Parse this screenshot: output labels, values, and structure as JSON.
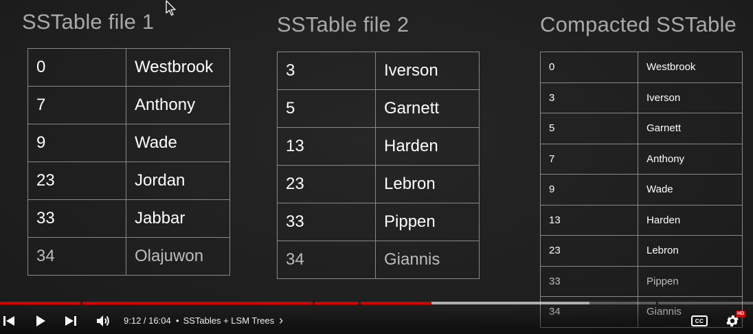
{
  "tables": [
    {
      "title": "SSTable file 1",
      "rows": [
        {
          "key": "0",
          "value": "Westbrook"
        },
        {
          "key": "7",
          "value": "Anthony"
        },
        {
          "key": "9",
          "value": "Wade"
        },
        {
          "key": "23",
          "value": "Jordan"
        },
        {
          "key": "33",
          "value": "Jabbar"
        },
        {
          "key": "34",
          "value": "Olajuwon"
        }
      ]
    },
    {
      "title": "SSTable file 2",
      "rows": [
        {
          "key": "3",
          "value": "Iverson"
        },
        {
          "key": "5",
          "value": "Garnett"
        },
        {
          "key": "13",
          "value": "Harden"
        },
        {
          "key": "23",
          "value": "Lebron"
        },
        {
          "key": "33",
          "value": "Pippen"
        },
        {
          "key": "34",
          "value": "Giannis"
        }
      ]
    },
    {
      "title": "Compacted SSTable",
      "rows": [
        {
          "key": "0",
          "value": "Westbrook"
        },
        {
          "key": "3",
          "value": "Iverson"
        },
        {
          "key": "5",
          "value": "Garnett"
        },
        {
          "key": "7",
          "value": "Anthony"
        },
        {
          "key": "9",
          "value": "Wade"
        },
        {
          "key": "13",
          "value": "Harden"
        },
        {
          "key": "23",
          "value": "Lebron"
        },
        {
          "key": "33",
          "value": "Pippen"
        },
        {
          "key": "34",
          "value": "Giannis"
        }
      ]
    }
  ],
  "player": {
    "time": "9:12 / 16:04",
    "separator": "•",
    "chapter": "SSTables + LSM Trees",
    "chapter_chevron": "›",
    "progress_fraction": 0.573,
    "cc_label": "CC",
    "hd_badge": "HD",
    "accent_color": "#d40000",
    "icons": {
      "previous": "skip-previous-icon",
      "play": "play-icon",
      "next": "skip-next-icon",
      "volume": "volume-icon",
      "captions": "closed-captions-icon",
      "settings": "gear-icon",
      "cursor": "mouse-cursor-icon"
    }
  }
}
